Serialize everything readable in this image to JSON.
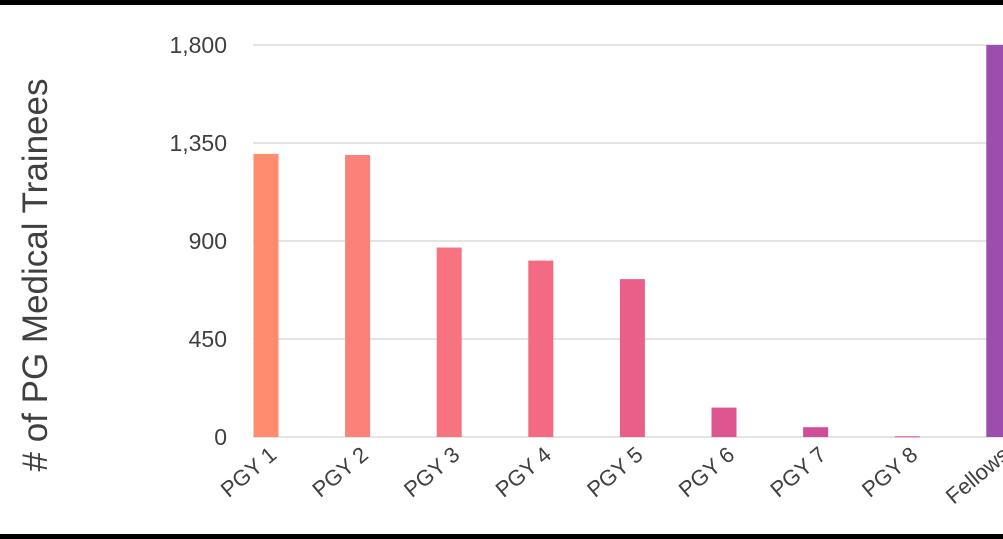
{
  "chart_data": {
    "type": "bar",
    "title": "",
    "xlabel": "",
    "ylabel": "# of PG Medical Trainees",
    "categories": [
      "PGY 1",
      "PGY 2",
      "PGY 3",
      "PGY 4",
      "PGY 5",
      "PGY 6",
      "PGY 7",
      "PGY 8",
      "Fellows"
    ],
    "values": [
      1300,
      1295,
      870,
      810,
      725,
      135,
      45,
      3,
      1800
    ],
    "bar_colors": [
      "#FF8C6E",
      "#FC8178",
      "#F87380",
      "#F46A83",
      "#EA5F8A",
      "#DE5590",
      "#D24D98",
      "#C8479F",
      "#9D4DAE"
    ],
    "yticks": [
      0,
      450,
      900,
      1350,
      1800
    ],
    "ytick_labels": [
      "0",
      "450",
      "900",
      "1,350",
      "1,800"
    ],
    "ylim": [
      0,
      1800
    ],
    "grid": true,
    "gridline_color": "#C8C8C8",
    "text_color": "#404040"
  }
}
